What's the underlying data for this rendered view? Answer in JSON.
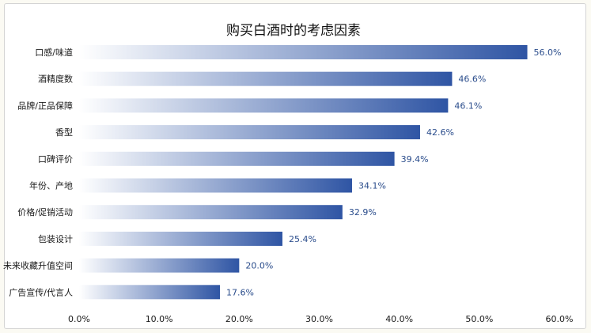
{
  "chart_data": {
    "type": "bar",
    "orientation": "horizontal",
    "title": "购买白酒时的考虑因素",
    "xlabel": "",
    "ylabel": "",
    "categories": [
      "口感/味道",
      "酒精度数",
      "品牌/正品保障",
      "香型",
      "口碑评价",
      "年份、产地",
      "价格/促销活动",
      "包装设计",
      "未来收藏升值空间",
      "广告宣传/代言人"
    ],
    "values": [
      56.0,
      46.6,
      46.1,
      42.6,
      39.4,
      34.1,
      32.9,
      25.4,
      20.0,
      17.6
    ],
    "value_labels": [
      "56.0%",
      "46.6%",
      "46.1%",
      "42.6%",
      "39.4%",
      "34.1%",
      "32.9%",
      "25.4%",
      "20.0%",
      "17.6%"
    ],
    "xlim": [
      0,
      60
    ],
    "xticks": [
      "0.0%",
      "10.0%",
      "20.0%",
      "30.0%",
      "40.0%",
      "50.0%",
      "60.0%"
    ],
    "grid": false,
    "legend": "none",
    "bar_gradient": [
      "#ffffff",
      "#2f55a4"
    ],
    "value_label_color": "#2b4d8c"
  }
}
